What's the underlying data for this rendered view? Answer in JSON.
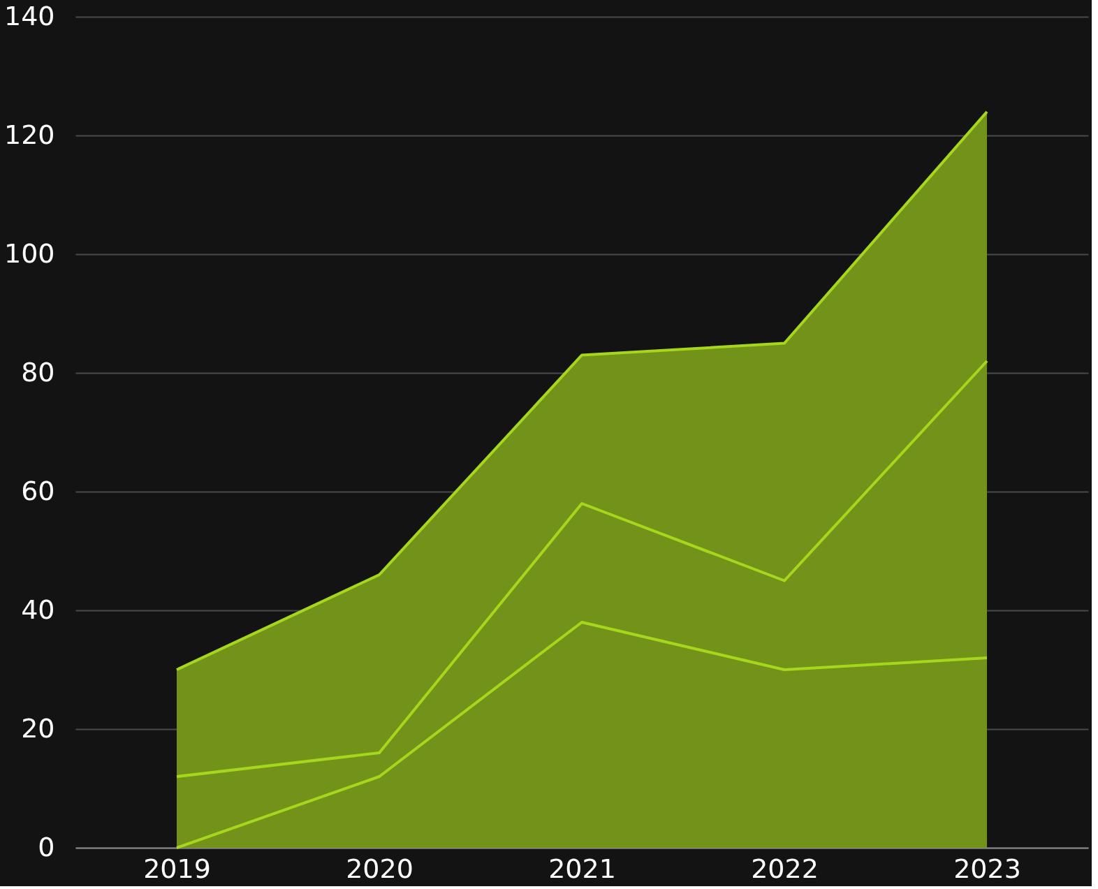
{
  "chart_data": {
    "type": "area",
    "categories": [
      "2019",
      "2020",
      "2021",
      "2022",
      "2023"
    ],
    "series": [
      {
        "color": "#a6d71c",
        "values": [
          30,
          46,
          83,
          85,
          124
        ]
      },
      {
        "type": "line",
        "color": "#a6d71c",
        "values": [
          12,
          16,
          58,
          45,
          82
        ]
      },
      {
        "type": "line",
        "color": "#a6d71c",
        "values": [
          0,
          12,
          38,
          30,
          32
        ]
      }
    ],
    "ylim": [
      0,
      140
    ],
    "yticks": [
      0,
      20,
      40,
      60,
      80,
      100,
      120,
      140
    ],
    "grid": "y"
  }
}
